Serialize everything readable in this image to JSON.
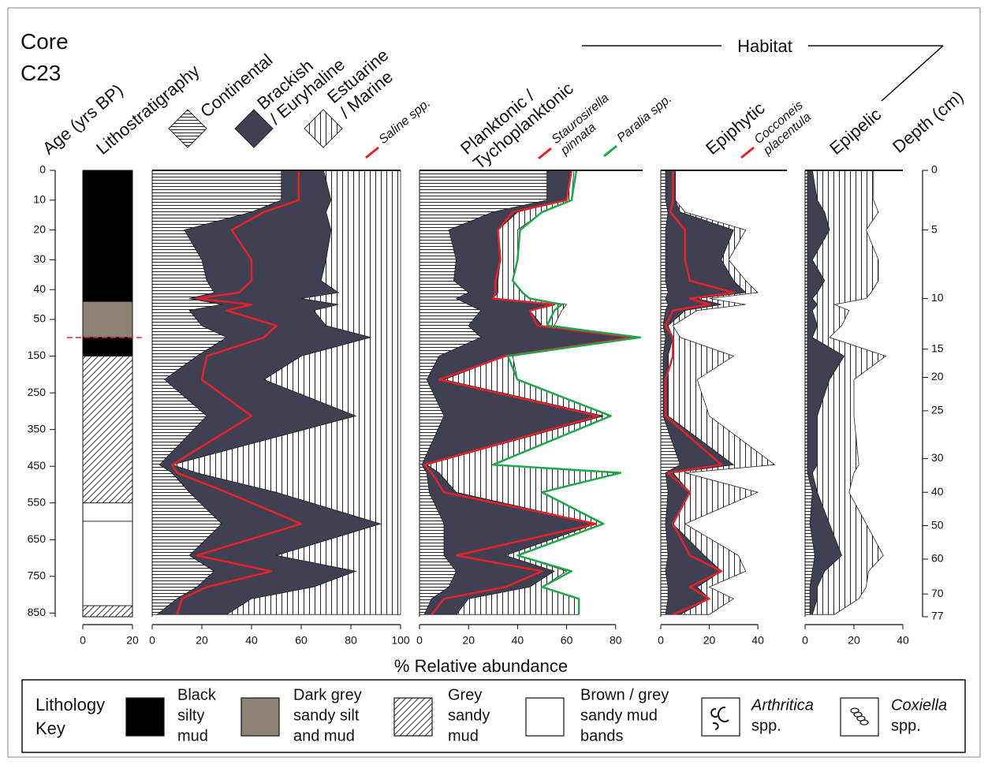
{
  "title": [
    "Core",
    "C23"
  ],
  "habitat_label": "Habitat",
  "x_label": "% Relative abundance",
  "sample_ages": [
    0,
    10,
    14,
    20,
    30,
    37,
    41,
    43,
    45,
    47,
    67,
    99,
    150,
    214,
    313,
    446,
    468,
    521,
    607,
    693,
    736,
    779,
    811,
    854
  ],
  "age_axis": {
    "label": "Age (yrs BP)",
    "ylim": [
      0,
      860
    ],
    "scale_break": 50,
    "yticks": [
      0,
      10,
      20,
      30,
      40,
      50,
      150,
      250,
      350,
      450,
      550,
      650,
      750,
      850
    ]
  },
  "depth_axis": {
    "label": "Depth (cm)",
    "ticks": [
      0,
      5,
      10,
      15,
      20,
      25,
      30,
      40,
      50,
      60,
      70,
      77
    ],
    "tick_ages": [
      0,
      20,
      43,
      131,
      208,
      299,
      429,
      521,
      612,
      703,
      798,
      860
    ]
  },
  "lithology": {
    "label": "Lithostratigraphy",
    "xlim": [
      0,
      20
    ],
    "xticks": [
      0,
      20
    ],
    "units": [
      {
        "top": 0,
        "base": 44,
        "key": 0
      },
      {
        "top": 44,
        "base": 99,
        "key": 1
      },
      {
        "top": 99,
        "base": 150,
        "key": 0
      },
      {
        "top": 150,
        "base": 550,
        "key": 2
      },
      {
        "top": 550,
        "base": 600,
        "key": 3
      },
      {
        "top": 600,
        "base": 830,
        "key": 3
      },
      {
        "top": 830,
        "base": 860,
        "key": 2
      }
    ]
  },
  "chart_data": [
    {
      "type": "area",
      "stacked": true,
      "xlim": [
        0,
        100
      ],
      "xticks": [
        0,
        20,
        40,
        60,
        80,
        100
      ],
      "series": [
        {
          "name": [
            "Continental"
          ],
          "pattern": "horizontal",
          "values": [
            52,
            52,
            40,
            13,
            20,
            22,
            25,
            15,
            28,
            15,
            20,
            30,
            18,
            5,
            22,
            3,
            8,
            15,
            28,
            15,
            25,
            18,
            10,
            2
          ]
        },
        {
          "name": [
            "Brackish",
            "/ Euryhaline"
          ],
          "color": "#3f4052",
          "values": [
            17,
            20,
            30,
            59,
            50,
            46,
            50,
            45,
            47,
            50,
            50,
            58,
            42,
            40,
            60,
            5,
            10,
            35,
            64,
            35,
            57,
            47,
            30,
            28
          ]
        },
        {
          "name": [
            "Estuarine",
            "/ Marine"
          ],
          "pattern": "vertical",
          "values": [
            31,
            28,
            30,
            28,
            30,
            32,
            25,
            40,
            25,
            35,
            30,
            12,
            40,
            55,
            18,
            92,
            82,
            50,
            8,
            50,
            18,
            35,
            60,
            70
          ]
        },
        {
          "name": "Saline spp.",
          "type": "line",
          "color": "#e8202a",
          "values": [
            59,
            59,
            45,
            32,
            40,
            40,
            35,
            18,
            40,
            30,
            50,
            45,
            22,
            20,
            40,
            8,
            10,
            30,
            60,
            18,
            48,
            22,
            12,
            10
          ]
        }
      ]
    },
    {
      "type": "area",
      "stacked": true,
      "title": [
        "Planktonic /",
        "Tychoplanktonic"
      ],
      "xlim": [
        0,
        91
      ],
      "xticks": [
        0,
        20,
        40,
        60,
        80
      ],
      "series": [
        {
          "pattern": "horizontal",
          "values": [
            52,
            52,
            30,
            12,
            15,
            14,
            20,
            15,
            20,
            25,
            20,
            25,
            8,
            3,
            10,
            1,
            3,
            4,
            10,
            10,
            15,
            12,
            5,
            2
          ]
        },
        {
          "color": "#3f4052",
          "values": [
            10,
            8,
            10,
            20,
            18,
            18,
            12,
            15,
            35,
            20,
            30,
            63,
            27,
            7,
            65,
            2,
            5,
            11,
            62,
            25,
            40,
            33,
            15,
            13
          ]
        },
        {
          "pattern": "vertical",
          "values": [
            1,
            2,
            10,
            8,
            7,
            6,
            10,
            15,
            5,
            13,
            5,
            2,
            3,
            30,
            3,
            27,
            74,
            35,
            3,
            5,
            5,
            5,
            45,
            50
          ]
        },
        {
          "name": [
            "Staurosirella",
            "pinnata"
          ],
          "type": "line",
          "color": "#e8202a",
          "values": [
            62,
            60,
            38,
            32,
            33,
            31,
            31,
            30,
            55,
            45,
            48,
            87,
            35,
            8,
            73,
            2,
            5,
            10,
            72,
            15,
            50,
            35,
            10,
            5
          ]
        },
        {
          "name": "Paralia spp.",
          "type": "line",
          "color": "#1aa84a",
          "values": [
            64,
            62,
            50,
            41,
            40,
            38,
            42,
            45,
            58,
            55,
            52,
            90,
            36,
            40,
            78,
            30,
            82,
            50,
            75,
            40,
            62,
            50,
            65,
            65
          ]
        }
      ]
    },
    {
      "type": "area",
      "stacked": true,
      "title": [
        "Epiphytic"
      ],
      "xlim": [
        0,
        52
      ],
      "xticks": [
        0,
        20,
        40
      ],
      "series": [
        {
          "pattern": "horizontal",
          "values": [
            2,
            2,
            3,
            2,
            2,
            2,
            3,
            2,
            3,
            2,
            1,
            2,
            1,
            1,
            1,
            8,
            2,
            3,
            2,
            3,
            2,
            3,
            3,
            2
          ]
        },
        {
          "color": "#3f4052",
          "values": [
            4,
            4,
            5,
            28,
            23,
            28,
            32,
            13,
            22,
            8,
            2,
            3,
            2,
            2,
            2,
            22,
            3,
            9,
            3,
            15,
            23,
            12,
            17,
            6
          ]
        },
        {
          "pattern": "vertical",
          "values": [
            0,
            0,
            2,
            5,
            3,
            5,
            5,
            5,
            10,
            5,
            2,
            3,
            27,
            12,
            17,
            17,
            5,
            28,
            5,
            14,
            10,
            5,
            10,
            12
          ]
        },
        {
          "name": [
            "Cocconeis",
            "placentula"
          ],
          "type": "line",
          "color": "#e8202a",
          "values": [
            5,
            5,
            4,
            10,
            10,
            12,
            30,
            12,
            20,
            5,
            2,
            5,
            5,
            2,
            2,
            25,
            3,
            12,
            5,
            12,
            25,
            12,
            20,
            5
          ]
        }
      ]
    },
    {
      "type": "area",
      "stacked": true,
      "title": [
        "Epipelic"
      ],
      "xlim": [
        0,
        40
      ],
      "xticks": [
        0,
        20,
        40
      ],
      "series": [
        {
          "pattern": "horizontal",
          "values": [
            1,
            1,
            1,
            1,
            1,
            1,
            1,
            1,
            1,
            1,
            1,
            1,
            1,
            1,
            1,
            1,
            1,
            3,
            2,
            4,
            3,
            2,
            2,
            2
          ]
        },
        {
          "color": "#3f4052",
          "values": [
            2,
            4,
            7,
            9,
            2,
            7,
            4,
            2,
            4,
            2,
            4,
            2,
            15,
            9,
            4,
            4,
            2,
            2,
            8,
            11,
            5,
            3,
            3,
            1
          ]
        },
        {
          "pattern": "vertical",
          "values": [
            25,
            23,
            22,
            15,
            27,
            22,
            22,
            22,
            7,
            15,
            10,
            7,
            17,
            10,
            15,
            17,
            17,
            13,
            15,
            17,
            18,
            20,
            17,
            9
          ]
        }
      ]
    }
  ],
  "key": {
    "title": [
      "Lithology",
      "Key"
    ],
    "items": [
      {
        "label": [
          "Black",
          "silty",
          "mud"
        ],
        "color": "#000000"
      },
      {
        "label": [
          "Dark grey",
          "sandy silt",
          "and mud"
        ],
        "color": "#8b8376"
      },
      {
        "label": [
          "Grey",
          "sandy",
          "mud"
        ],
        "pattern": "diagonal"
      },
      {
        "label": [
          "Brown / grey",
          "sandy mud",
          "bands"
        ],
        "color": "#ffffff"
      },
      {
        "label": [
          "Arthritica",
          "spp."
        ],
        "color": "#ffffff",
        "symbol": "arthritica"
      },
      {
        "label": [
          "Coxiella",
          "spp."
        ],
        "color": "#ffffff",
        "symbol": "coxiella"
      }
    ]
  }
}
